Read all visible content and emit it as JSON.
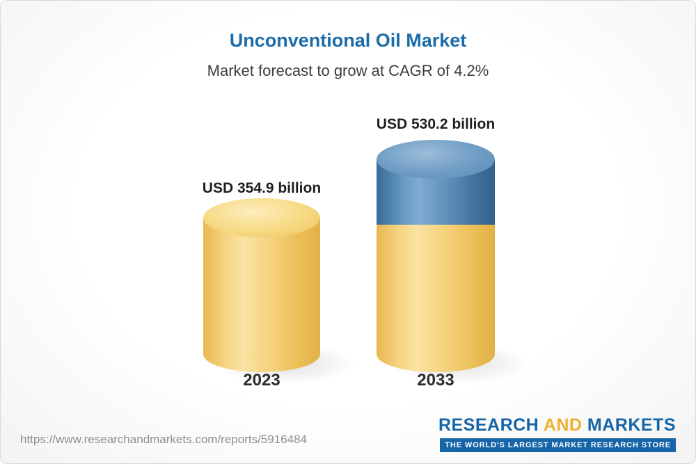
{
  "chart_data": {
    "type": "bar",
    "variant": "3d-cylinder",
    "title": "Unconventional Oil Market",
    "subtitle": "Market forecast to grow at CAGR of 4.2%",
    "categories": [
      "2023",
      "2033"
    ],
    "values": [
      354.9,
      530.2
    ],
    "value_labels": [
      "USD 354.9 billion",
      "USD 530.2 billion"
    ],
    "unit": "USD billion",
    "cagr": "4.2%",
    "stacking_note": "2033 bar colored base-yellow up to 2023 value, blue above",
    "segments_2033": {
      "base": 354.9,
      "growth": 175.3
    },
    "colors": {
      "base_segment": "#F2C557",
      "growth_segment": "#4A7FAC",
      "title_text": "#1B6CA8"
    },
    "legend": "none",
    "grid": false,
    "axes": "none"
  },
  "footer": {
    "url": "https://www.researchandmarkets.com/reports/5916484",
    "logo": {
      "word_research": "RESEARCH",
      "word_and": "AND",
      "word_markets": "MARKETS",
      "tagline": "THE WORLD'S LARGEST MARKET RESEARCH STORE"
    }
  }
}
